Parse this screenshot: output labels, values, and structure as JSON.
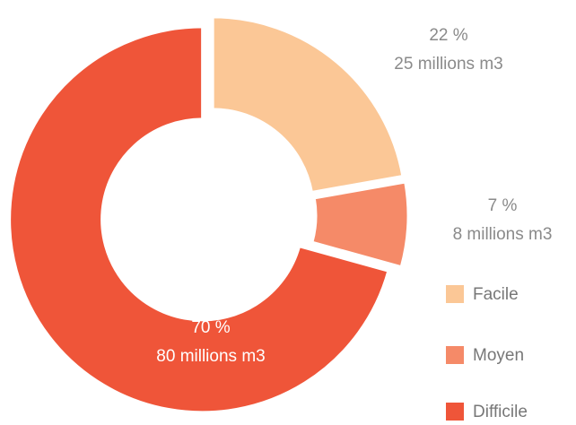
{
  "chart_data": {
    "type": "donut",
    "categories": [
      "Facile",
      "Moyen",
      "Difficile"
    ],
    "values": [
      22,
      7,
      70
    ],
    "value_labels": [
      "22 %",
      "7 %",
      "70 %"
    ],
    "volumes": {
      "values": [
        25,
        8,
        80
      ],
      "value_labels": [
        "25 millions m3",
        "8 millions m3",
        "80 millions m3"
      ]
    },
    "colors": [
      "#fbc796",
      "#f58a68",
      "#ef5539"
    ],
    "legend": "bottom-right"
  }
}
